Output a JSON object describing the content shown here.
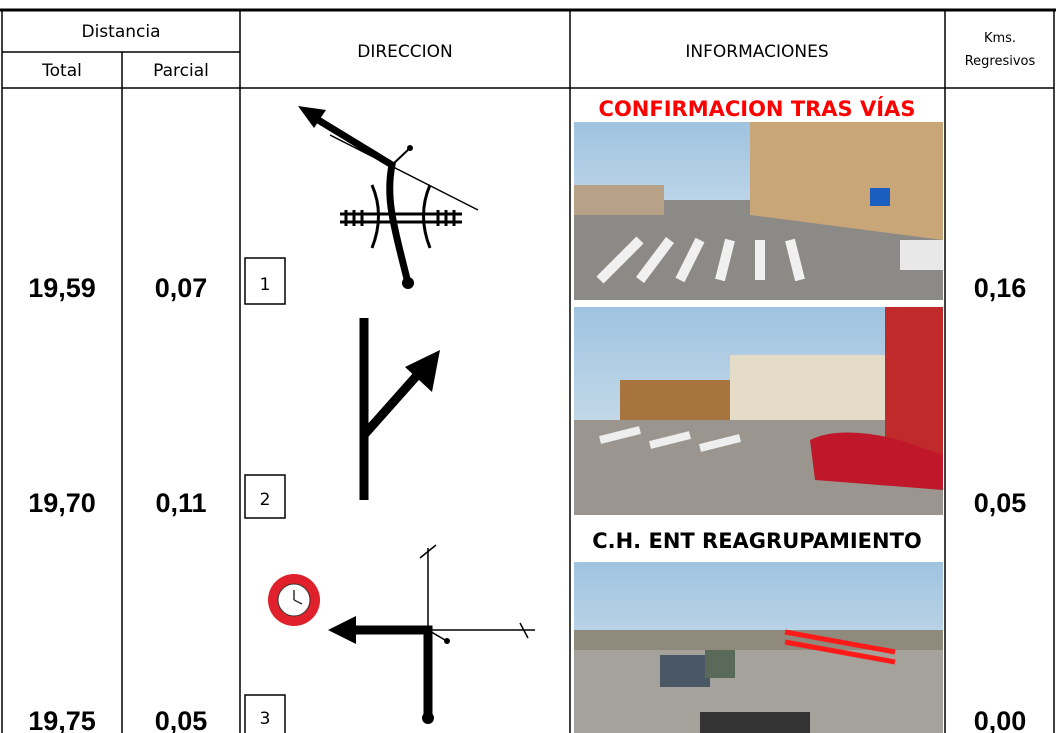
{
  "header": {
    "distance": "Distancia",
    "total": "Total",
    "partial": "Parcial",
    "direction": "DIRECCION",
    "info": "INFORMACIONES",
    "remaining": [
      "Kms.",
      "Regresivos"
    ]
  },
  "rows": [
    {
      "total": "19,59",
      "partial": "0,07",
      "step": "1",
      "info": "CONFIRMACION TRAS VÍAS",
      "remaining": "0,16"
    },
    {
      "total": "19,70",
      "partial": "0,11",
      "step": "2",
      "remaining": "0,05"
    },
    {
      "total": "19,75",
      "partial": "0,05",
      "step": "3",
      "info": "C.H. ENT REAGRUPAMIENTO",
      "remaining": "0,00"
    }
  ]
}
